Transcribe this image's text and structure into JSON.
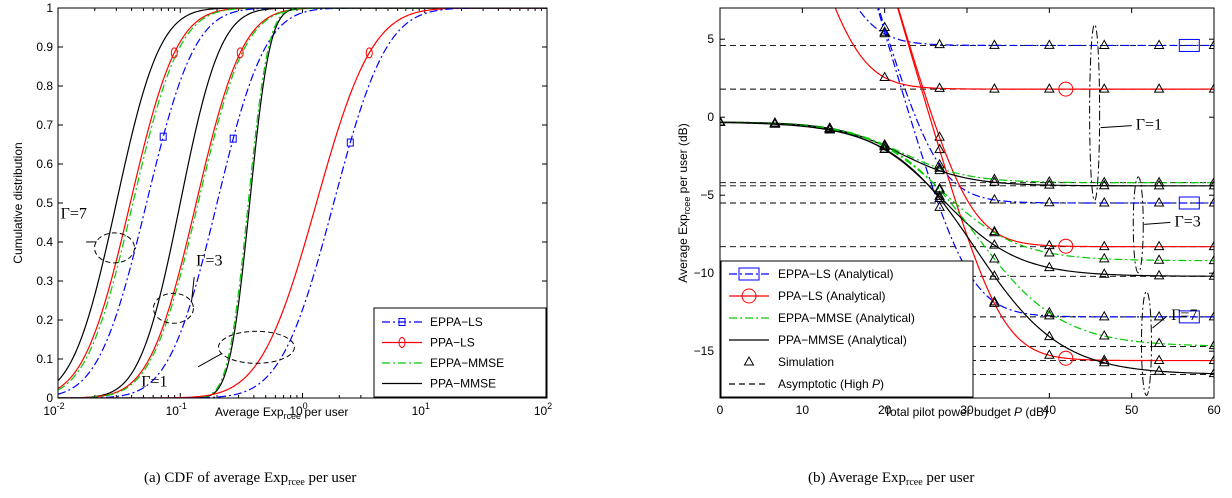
{
  "captions": {
    "a": "(a) CDF of average Exp",
    "a_sub": "rcee",
    "a_tail": " per user",
    "b": "(b) Average Exp",
    "b_sub": "rcee",
    "b_tail": " per user"
  },
  "chart_data": [
    {
      "type": "line",
      "xscale": "log",
      "xlim": [
        0.01,
        100
      ],
      "ylim": [
        0,
        1
      ],
      "xticks": [
        0.01,
        0.1,
        1,
        10,
        100
      ],
      "xtick_labels": [
        "10",
        "10",
        "10",
        "10",
        "10"
      ],
      "xtick_exps": [
        "-2",
        "-1",
        "0",
        "1",
        "2"
      ],
      "yticks": [
        0,
        0.1,
        0.2,
        0.3,
        0.4,
        0.5,
        0.6,
        0.7,
        0.8,
        0.9,
        1
      ],
      "ytick_labels": [
        "0",
        "0.1",
        "0.2",
        "0.3",
        "0.4",
        "0.5",
        "0.6",
        "0.7",
        "0.8",
        "0.9",
        "1"
      ],
      "xlabel": "Average  Exp",
      "xlabel_sub": "rcee",
      "xlabel_tail": " per user",
      "ylabel": "Cumulative distribution",
      "legend": [
        {
          "label": "EPPA−LS",
          "color": "#0000ff",
          "dash": "8,3,2,3",
          "marker": "square"
        },
        {
          "label": "PPA−LS",
          "color": "#ff0000",
          "dash": "",
          "marker": "circle"
        },
        {
          "label": "EPPA−MMSE",
          "color": "#00cc00",
          "dash": "8,3,2,3",
          "marker": "none"
        },
        {
          "label": "PPA−MMSE",
          "color": "#000000",
          "dash": "",
          "marker": "none"
        }
      ],
      "legend_position": "bottom-right",
      "annotations": [
        {
          "label": "Γ=7",
          "ellipse_x": 0.029,
          "ellipse_y": 0.385,
          "arrow_from_x": 0.017,
          "arrow_from_y": 0.4
        },
        {
          "label": "Γ=3",
          "ellipse_x": 0.088,
          "ellipse_y": 0.23,
          "arrow_from_x": 0.13,
          "arrow_from_y": 0.31
        },
        {
          "label": "Γ=1",
          "ellipse_x": 0.42,
          "ellipse_y": 0.13,
          "arrow_from_x": 0.14,
          "arrow_from_y": 0.08
        }
      ],
      "series": [
        {
          "color": "#000000",
          "dash": "",
          "median": 0.03,
          "width": 0.28,
          "marker": "none"
        },
        {
          "color": "#ff0000",
          "dash": "",
          "median": 0.039,
          "width": 0.3,
          "marker": "circle",
          "marker_y": 0.885
        },
        {
          "color": "#00cc00",
          "dash": "8,3,2,3",
          "median": 0.041,
          "width": 0.3,
          "marker": "none"
        },
        {
          "color": "#0000ff",
          "dash": "8,3,2,3",
          "median": 0.053,
          "width": 0.31,
          "marker": "square",
          "marker_y": 0.67
        },
        {
          "color": "#000000",
          "dash": "",
          "median": 0.1,
          "width": 0.26,
          "marker": "none"
        },
        {
          "color": "#ff0000",
          "dash": "",
          "median": 0.135,
          "width": 0.3,
          "marker": "circle",
          "marker_y": 0.885
        },
        {
          "color": "#00cc00",
          "dash": "8,3,2,3",
          "median": 0.14,
          "width": 0.3,
          "marker": "none"
        },
        {
          "color": "#0000ff",
          "dash": "8,3,2,3",
          "median": 0.2,
          "width": 0.31,
          "marker": "square",
          "marker_y": 0.665
        },
        {
          "color": "#000000",
          "dash": "",
          "median": 0.37,
          "width": 0.13,
          "marker": "none"
        },
        {
          "color": "#00cc00",
          "dash": "8,3,2,3",
          "median": 0.36,
          "width": 0.13,
          "marker": "none"
        },
        {
          "color": "#ff0000",
          "dash": "",
          "median": 1.3,
          "width": 0.36,
          "marker": "circle",
          "marker_y": 0.885
        },
        {
          "color": "#0000ff",
          "dash": "8,3,2,3",
          "median": 1.8,
          "width": 0.34,
          "marker": "square",
          "marker_y": 0.655
        }
      ]
    },
    {
      "type": "line",
      "xlim": [
        0,
        60
      ],
      "ylim": [
        -18,
        7
      ],
      "xticks": [
        0,
        10,
        20,
        30,
        40,
        50,
        60
      ],
      "xtick_labels": [
        "0",
        "10",
        "20",
        "30",
        "40",
        "50",
        "60"
      ],
      "yticks": [
        -15,
        -10,
        -5,
        0,
        5
      ],
      "ytick_labels": [
        "−15",
        "−10",
        "−5",
        "0",
        "5"
      ],
      "xlabel": "Total pilot power budget ",
      "xlabel_var": "P",
      "xlabel_tail": " (dB)",
      "ylabel": "Average Exp",
      "ylabel_sub": "rcee",
      "ylabel_tail": " per user (dB)",
      "legend": [
        {
          "label": "EPPA−LS (Analytical)",
          "color": "#0000ff",
          "dash": "8,3,2,3",
          "marker": "square"
        },
        {
          "label": "PPA−LS (Analytical)",
          "color": "#ff0000",
          "dash": "",
          "marker": "circle"
        },
        {
          "label": "EPPA−MMSE (Analytical)",
          "color": "#00cc00",
          "dash": "8,3,2,3",
          "marker": "none"
        },
        {
          "label": "PPA−MMSE (Analytical)",
          "color": "#000000",
          "dash": "",
          "marker": "none"
        },
        {
          "label": "Simulation",
          "color": "#000000",
          "dash": "none",
          "marker": "triangle"
        },
        {
          "label": "Asymptotic (High  ",
          "label_var": "P",
          "label_tail": ")",
          "color": "#000000",
          "dash": "6,4",
          "marker": "none"
        }
      ],
      "legend_position": "bottom-left",
      "annotations": [
        {
          "label": "Γ=1",
          "ellipse_x": 45.5,
          "ellipse_y": 0.3,
          "arrow_to_x": 46.8,
          "arrow_to_y": -0.5
        },
        {
          "label": "Γ=3",
          "ellipse_x": 50.8,
          "ellipse_y": -6.9,
          "arrow_to_x": 52.2,
          "arrow_to_y": -7.4
        },
        {
          "label": "Γ=7",
          "ellipse_x": 51.8,
          "ellipse_y": -14.5,
          "arrow_to_x": 52.7,
          "arrow_to_y": -13.1
        }
      ],
      "asymptotes": [
        4.6,
        1.8,
        -4.2,
        -4.4,
        -5.5,
        -8.3,
        -10.2,
        -12.8,
        -14.7,
        -15.6,
        -16.5
      ],
      "sim_x": [
        0,
        6.67,
        13.33,
        20,
        26.67,
        33.33,
        40,
        46.67,
        53.33,
        60
      ],
      "series": [
        {
          "color": "#0000ff",
          "dash": "8,3,2,3",
          "kind": "high",
          "floor": 4.6,
          "k": 0.12,
          "offset": 0,
          "marker": "square",
          "marker_x": 57
        },
        {
          "color": "#ff0000",
          "dash": "",
          "kind": "high",
          "floor": 1.8,
          "k": 0.12,
          "offset": 0,
          "marker": "circle",
          "marker_x": 42
        },
        {
          "color": "#0000ff",
          "dash": "8,3,2,3",
          "kind": "high",
          "floor": -5.5,
          "k": 0.12,
          "offset": 0,
          "marker": "square",
          "marker_x": 57
        },
        {
          "color": "#ff0000",
          "dash": "",
          "kind": "high",
          "floor": -8.3,
          "k": 0.12,
          "offset": 0,
          "marker": "circle",
          "marker_x": 42
        },
        {
          "color": "#0000ff",
          "dash": "8,3,2,3",
          "kind": "high",
          "floor": -12.8,
          "k": 0.12,
          "offset": 0,
          "marker": "square",
          "marker_x": 57
        },
        {
          "color": "#ff0000",
          "dash": "",
          "kind": "high",
          "floor": -15.6,
          "k": 0.12,
          "offset": 0,
          "marker": "circle",
          "marker_x": 42
        },
        {
          "color": "#00cc00",
          "dash": "8,3,2,3",
          "kind": "low",
          "floor": -4.2,
          "mid": 22,
          "scale": 4,
          "marker": "none"
        },
        {
          "color": "#000000",
          "dash": "",
          "kind": "low",
          "floor": -4.4,
          "mid": 22,
          "scale": 4,
          "marker": "none"
        },
        {
          "color": "#00cc00",
          "dash": "8,3,2,3",
          "kind": "low",
          "floor": -9.2,
          "mid": 27,
          "scale": 4.6,
          "marker": "none"
        },
        {
          "color": "#000000",
          "dash": "",
          "kind": "low",
          "floor": -10.2,
          "mid": 27,
          "scale": 4.6,
          "marker": "none"
        },
        {
          "color": "#00cc00",
          "dash": "8,3,2,3",
          "kind": "low",
          "floor": -14.7,
          "mid": 31,
          "scale": 5.2,
          "marker": "none"
        },
        {
          "color": "#000000",
          "dash": "",
          "kind": "low",
          "floor": -16.5,
          "mid": 31,
          "scale": 5.2,
          "marker": "none"
        }
      ]
    }
  ]
}
